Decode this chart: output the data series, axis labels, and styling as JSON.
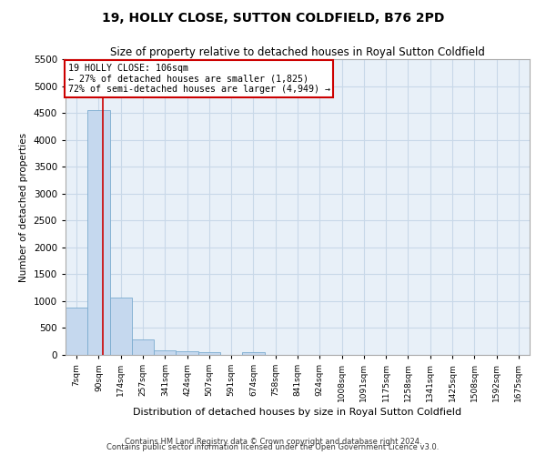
{
  "title": "19, HOLLY CLOSE, SUTTON COLDFIELD, B76 2PD",
  "subtitle": "Size of property relative to detached houses in Royal Sutton Coldfield",
  "xlabel": "Distribution of detached houses by size in Royal Sutton Coldfield",
  "ylabel": "Number of detached properties",
  "footnote1": "Contains HM Land Registry data © Crown copyright and database right 2024.",
  "footnote2": "Contains public sector information licensed under the Open Government Licence v3.0.",
  "bin_labels": [
    "7sqm",
    "90sqm",
    "174sqm",
    "257sqm",
    "341sqm",
    "424sqm",
    "507sqm",
    "591sqm",
    "674sqm",
    "758sqm",
    "841sqm",
    "924sqm",
    "1008sqm",
    "1091sqm",
    "1175sqm",
    "1258sqm",
    "1341sqm",
    "1425sqm",
    "1508sqm",
    "1592sqm",
    "1675sqm"
  ],
  "bin_values": [
    880,
    4560,
    1060,
    280,
    80,
    75,
    50,
    0,
    50,
    0,
    0,
    0,
    0,
    0,
    0,
    0,
    0,
    0,
    0,
    0,
    0
  ],
  "bar_color": "#c5d8ee",
  "bar_edge_color": "#7aabcf",
  "grid_color": "#c8d8e8",
  "background_color": "#e8f0f8",
  "vline_x": 1.19,
  "vline_color": "#cc0000",
  "annotation_text": "19 HOLLY CLOSE: 106sqm\n← 27% of detached houses are smaller (1,825)\n72% of semi-detached houses are larger (4,949) →",
  "annotation_box_color": "#cc0000",
  "ylim": [
    0,
    5500
  ],
  "yticks": [
    0,
    500,
    1000,
    1500,
    2000,
    2500,
    3000,
    3500,
    4000,
    4500,
    5000,
    5500
  ]
}
